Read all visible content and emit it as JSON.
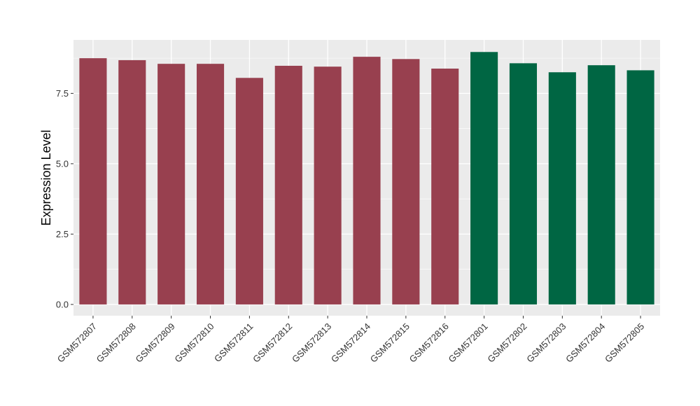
{
  "chart_data": {
    "type": "bar",
    "categories": [
      "GSM572807",
      "GSM572808",
      "GSM572809",
      "GSM572810",
      "GSM572811",
      "GSM572812",
      "GSM572813",
      "GSM572814",
      "GSM572815",
      "GSM572816",
      "GSM572801",
      "GSM572802",
      "GSM572803",
      "GSM572804",
      "GSM572805"
    ],
    "values": [
      8.75,
      8.68,
      8.55,
      8.55,
      8.05,
      8.48,
      8.45,
      8.8,
      8.72,
      8.38,
      8.97,
      8.57,
      8.25,
      8.5,
      8.32
    ],
    "groups": [
      0,
      0,
      0,
      0,
      0,
      0,
      0,
      0,
      0,
      0,
      1,
      1,
      1,
      1,
      1
    ],
    "group_colors": [
      "#98404f",
      "#006643"
    ],
    "title": "",
    "xlabel": "",
    "ylabel": "Expression Level",
    "ylim": [
      -0.4,
      9.4
    ],
    "yticks": [
      0.0,
      2.5,
      5.0,
      7.5
    ],
    "ytick_labels": [
      "0.0",
      "2.5",
      "5.0",
      "7.5"
    ],
    "grid": true,
    "panel_background": "#ebebeb",
    "gridline_color": "#ffffff"
  }
}
